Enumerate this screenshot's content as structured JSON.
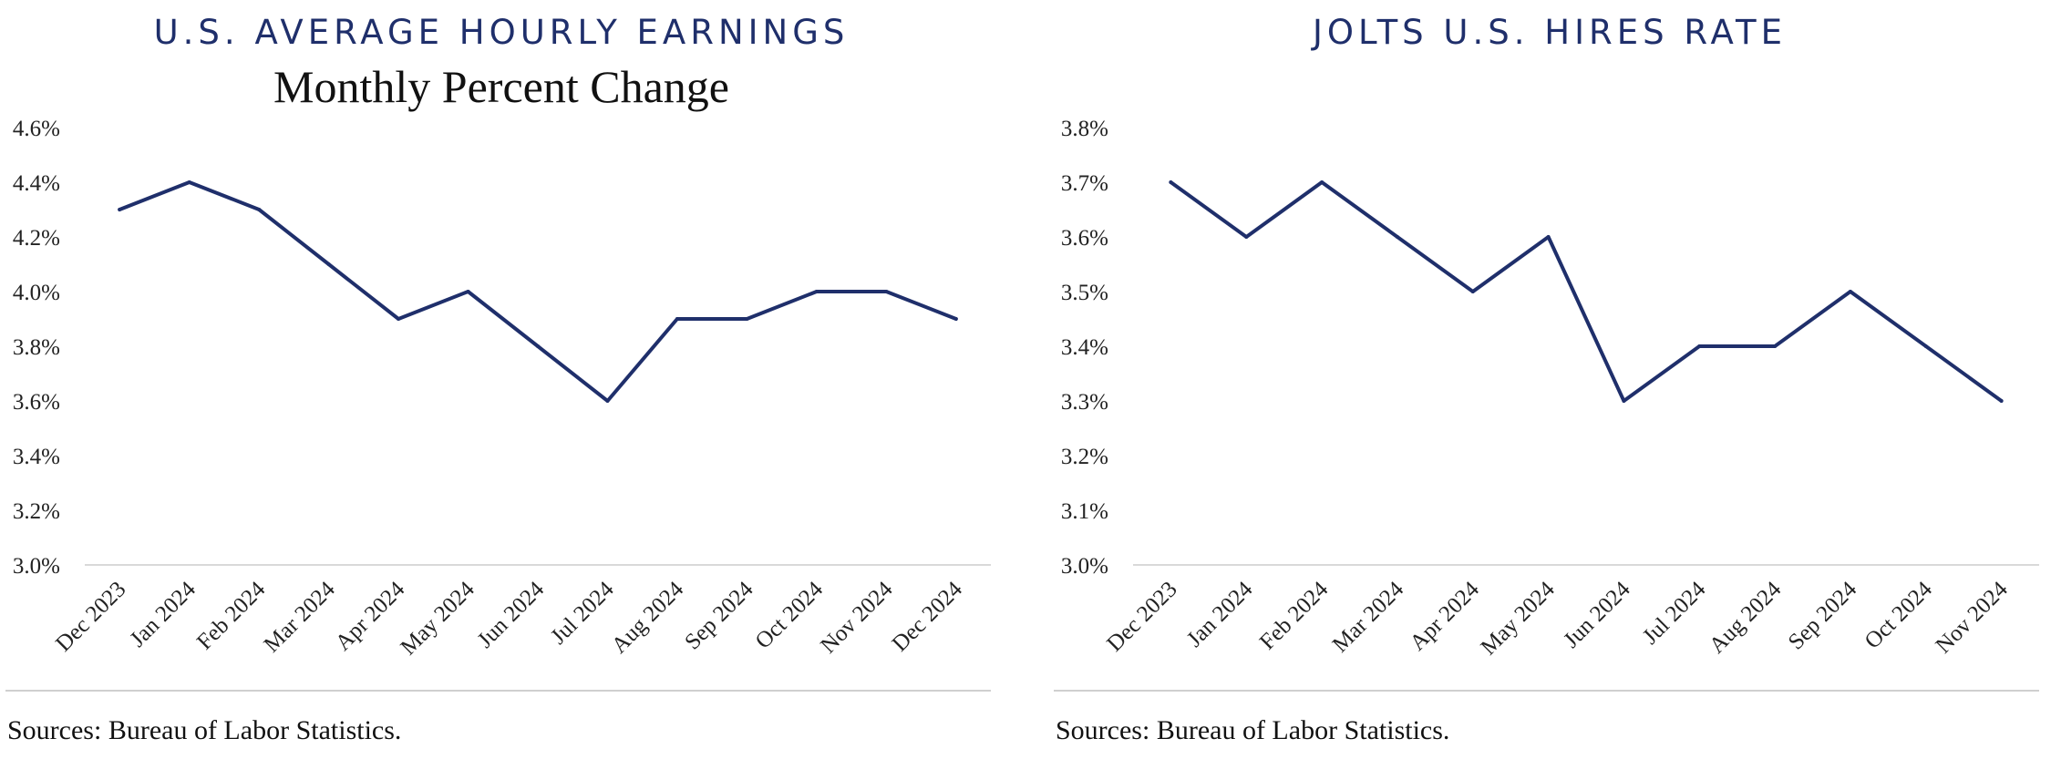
{
  "colors": {
    "line": "#1f2f6b",
    "title": "#1f2f6b",
    "axis": "#d9d9d9",
    "source_rule": "#cfcfcf"
  },
  "chart_data": [
    {
      "type": "line",
      "title": "U.S. AVERAGE HOURLY EARNINGS",
      "subtitle": "Monthly Percent Change",
      "categories": [
        "Dec 2023",
        "Jan 2024",
        "Feb 2024",
        "Mar 2024",
        "Apr 2024",
        "May 2024",
        "Jun 2024",
        "Jul 2024",
        "Aug 2024",
        "Sep 2024",
        "Oct 2024",
        "Nov 2024",
        "Dec 2024"
      ],
      "values": [
        4.3,
        4.4,
        4.3,
        4.1,
        3.9,
        4.0,
        3.8,
        3.6,
        3.9,
        3.9,
        4.0,
        4.0,
        3.9
      ],
      "yticks": [
        "3.0%",
        "3.2%",
        "3.4%",
        "3.6%",
        "3.8%",
        "4.0%",
        "4.2%",
        "4.4%",
        "4.6%"
      ],
      "ylim": [
        3.0,
        4.6
      ],
      "grid": false,
      "legend": "none",
      "source": "Sources: Bureau of Labor Statistics."
    },
    {
      "type": "line",
      "title": "JOLTS U.S. HIRES RATE",
      "subtitle": "",
      "categories": [
        "Dec 2023",
        "Jan 2024",
        "Feb 2024",
        "Mar 2024",
        "Apr 2024",
        "May 2024",
        "Jun 2024",
        "Jul 2024",
        "Aug 2024",
        "Sep 2024",
        "Oct 2024",
        "Nov 2024"
      ],
      "values": [
        3.7,
        3.6,
        3.7,
        3.6,
        3.5,
        3.6,
        3.3,
        3.4,
        3.4,
        3.5,
        3.4,
        3.3
      ],
      "yticks": [
        "3.0%",
        "3.1%",
        "3.2%",
        "3.3%",
        "3.4%",
        "3.5%",
        "3.6%",
        "3.7%",
        "3.8%"
      ],
      "ylim": [
        3.0,
        3.8
      ],
      "grid": false,
      "legend": "none",
      "source": "Sources: Bureau of Labor Statistics."
    }
  ]
}
